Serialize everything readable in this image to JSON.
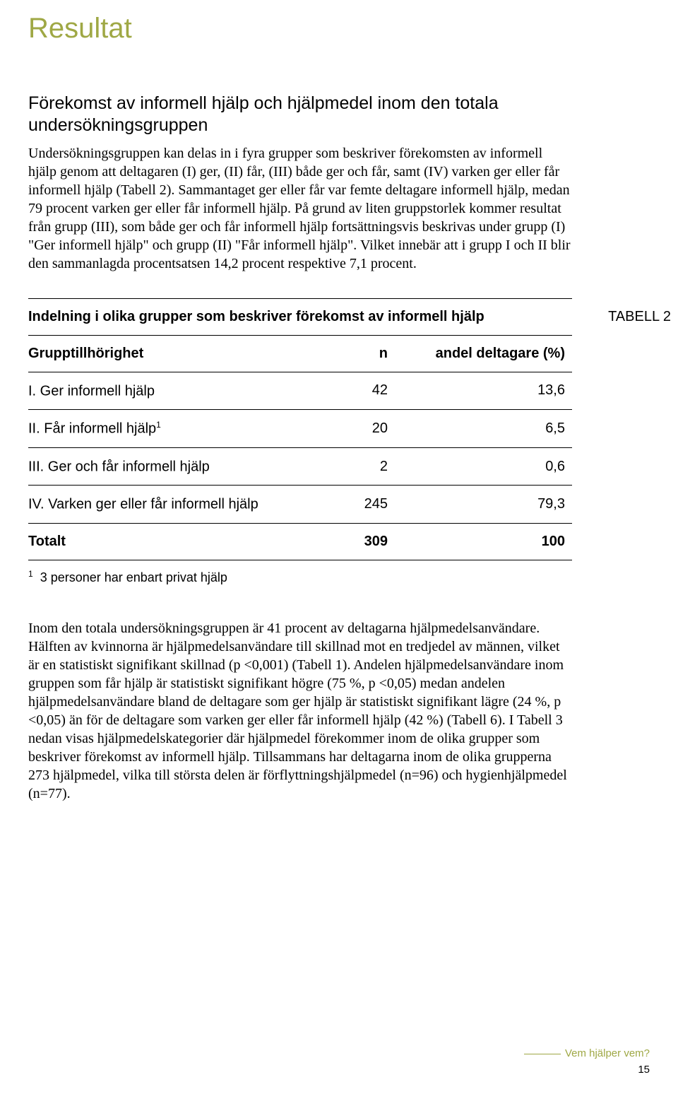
{
  "title": "Resultat",
  "section_heading": "Förekomst av informell hjälp och hjälpmedel inom den totala undersökningsgruppen",
  "para1": "Undersökningsgruppen kan delas in i fyra grupper som beskriver förekomsten av informell hjälp genom att deltagaren (I) ger, (II) får, (III) både ger och får, samt (IV) varken ger eller får informell hjälp (Tabell 2). Sammantaget ger eller får var femte deltagare informell hjälp, medan 79 procent varken ger eller får informell hjälp. På grund av liten gruppstorlek kommer resultat från grupp (III), som både ger och får informell hjälp fortsättningsvis beskrivas under grupp (I) \"Ger informell hjälp\" och grupp (II) \"Får informell hjälp\". Vilket innebär att i grupp I och II blir den sammanlagda procentsatsen 14,2 procent respektive 7,1 procent.",
  "table": {
    "caption": "Indelning i olika grupper som beskriver förekomst av informell hjälp",
    "label": "TABELL 2",
    "headers": {
      "group": "Grupptillhörighet",
      "n": "n",
      "pct": "andel deltagare (%)"
    },
    "rows": [
      {
        "group": "I. Ger informell hjälp",
        "n": "42",
        "pct": "13,6",
        "sup": ""
      },
      {
        "group": "II. Får informell hjälp",
        "n": "20",
        "pct": "6,5",
        "sup": "1"
      },
      {
        "group": "III. Ger och får informell hjälp",
        "n": "2",
        "pct": "0,6",
        "sup": ""
      },
      {
        "group": "IV. Varken ger eller får informell hjälp",
        "n": "245",
        "pct": "79,3",
        "sup": ""
      }
    ],
    "total": {
      "group": "Totalt",
      "n": "309",
      "pct": "100"
    },
    "footnote_marker": "1",
    "footnote_text": "3 personer har enbart privat hjälp"
  },
  "para2": "Inom den totala undersökningsgruppen är 41 procent av deltagarna hjälpmedelsanvändare. Hälften av kvinnorna är hjälpmedelsanvändare till skillnad mot en tredjedel av männen, vilket är en statistiskt signifikant skillnad (p <0,001) (Tabell 1). Andelen hjälpmedelsanvändare inom gruppen som får hjälp är statistiskt signifikant högre (75 %, p <0,05) medan andelen hjälpmedelsanvändare bland de deltagare som ger hjälp är statistiskt signifikant lägre (24 %, p <0,05) än för de deltagare som varken ger eller får informell hjälp (42 %) (Tabell 6). I Tabell 3 nedan visas hjälpmedelskategorier där hjälpmedel förekommer inom de olika grupper som beskriver förekomst av informell hjälp. Tillsammans har deltagarna inom de olika grupperna 273 hjälpmedel, vilka till största delen är förflyttningshjälpmedel (n=96) och hygienhjälpmedel (n=77).",
  "footer": {
    "title": "Vem hjälper vem?",
    "page": "15"
  },
  "colors": {
    "accent": "#9fa845",
    "text": "#000000",
    "background": "#ffffff"
  }
}
